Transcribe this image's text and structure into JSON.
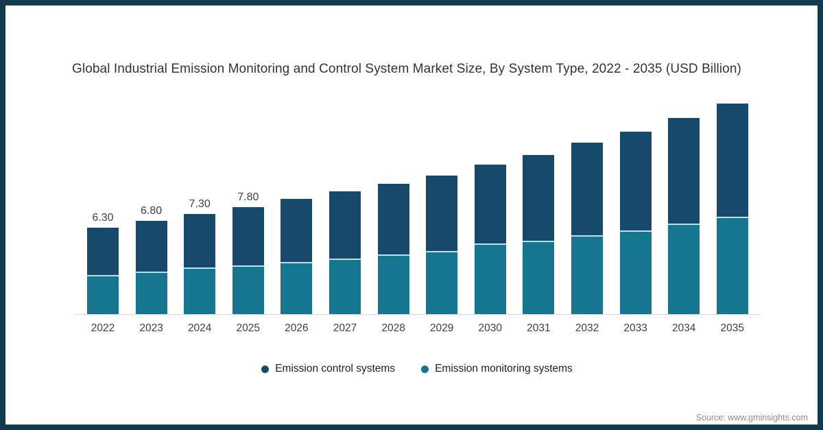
{
  "title": "Global Industrial Emission Monitoring and Control System Market Size, By System Type, 2022 - 2035 (USD Billion)",
  "source": "Source: www.gminsights.com",
  "colors": {
    "frame_border": "#123B4C",
    "control_series": "#17496B",
    "monitoring_series": "#16758F",
    "axis_line": "#d6d6d6",
    "label_text": "#3f3f3f",
    "title_text": "#333333",
    "source_text": "#8c8c8c"
  },
  "legend": {
    "items": [
      {
        "label": "Emission control systems",
        "color": "#17496B"
      },
      {
        "label": "Emission monitoring systems",
        "color": "#16758F"
      }
    ]
  },
  "chart_data": {
    "type": "bar",
    "stacked": true,
    "title": "Global Industrial Emission Monitoring and Control System Market Size, By System Type, 2022 - 2035 (USD Billion)",
    "xlabel": "",
    "ylabel": "USD Billion",
    "ylim": [
      0,
      16.5
    ],
    "grid": false,
    "legend_position": "bottom",
    "categories": [
      "2022",
      "2023",
      "2024",
      "2025",
      "2026",
      "2027",
      "2028",
      "2029",
      "2030",
      "2031",
      "2032",
      "2033",
      "2034",
      "2035"
    ],
    "series": [
      {
        "name": "Emission monitoring systems",
        "color": "#16758F",
        "values": [
          2.85,
          3.1,
          3.4,
          3.55,
          3.8,
          4.05,
          4.35,
          4.6,
          5.15,
          5.35,
          5.75,
          6.1,
          6.6,
          7.1
        ]
      },
      {
        "name": "Emission control systems",
        "color": "#17496B",
        "values": [
          3.45,
          3.7,
          3.9,
          4.25,
          4.6,
          4.9,
          5.15,
          5.5,
          5.75,
          6.25,
          6.75,
          7.2,
          7.7,
          8.25
        ]
      }
    ],
    "totals": [
      6.3,
      6.8,
      7.3,
      7.8,
      8.4,
      8.95,
      9.5,
      10.1,
      10.9,
      11.6,
      12.5,
      13.3,
      14.3,
      15.35
    ],
    "value_labels": [
      "6.30",
      "6.80",
      "7.30",
      "7.80",
      "",
      "",
      "",
      "",
      "",
      "",
      "",
      "",
      "",
      ""
    ]
  }
}
